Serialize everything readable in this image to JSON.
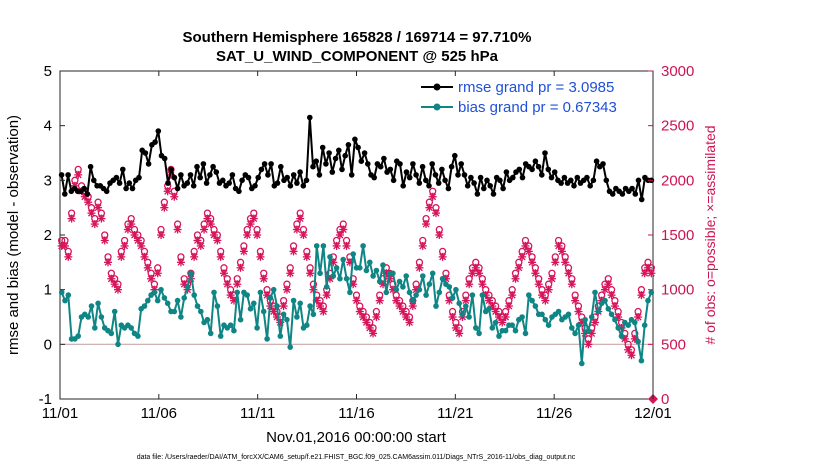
{
  "chart_data": {
    "type": "line",
    "title": "Southern Hemisphere 165828 / 169714 = 97.710%",
    "subtitle": "SAT_U_WIND_COMPONENT @ 525 hPa",
    "xlabel": "Nov.01,2016 00:00:00 start",
    "ylabel": "rmse and bias (model - observation)",
    "ylabel_right": "# of obs: o=possible; ×=assimilated",
    "footnote": "data file: /Users/raeder/DAI/ATM_forcXX/CAM6_setup/f.e21.FHIST_BGC.f09_025.CAM6assim.011/Diags_NTrS_2016-11/obs_diag_output.nc",
    "xlim": [
      0,
      30
    ],
    "ylim": [
      -1,
      5
    ],
    "ylim_right": [
      0,
      3000
    ],
    "x_tick_labels": [
      "11/01",
      "11/06",
      "11/11",
      "11/16",
      "11/21",
      "11/26",
      "12/01"
    ],
    "y_tick_labels": [
      "-1",
      "0",
      "1",
      "2",
      "3",
      "4",
      "5"
    ],
    "y_right_tick_labels": [
      "0",
      "500",
      "1000",
      "1500",
      "2000",
      "2500",
      "3000"
    ],
    "legend": [
      "rmse grand pr = 3.0985",
      "bias grand pr = 0.67343"
    ],
    "legend_position": "top-right",
    "colors": {
      "rmse": "#000000",
      "bias": "#0f8585",
      "obs": "#d6145a",
      "zero_line": "#c8a8a8"
    },
    "series": [
      {
        "name": "rmse",
        "values": [
          3.1,
          2.75,
          3.1,
          2.8,
          2.85,
          2.8,
          2.8,
          2.85,
          2.75,
          3.25,
          3.0,
          2.9,
          2.9,
          2.85,
          2.8,
          2.95,
          3.0,
          3.05,
          2.95,
          3.2,
          2.85,
          2.95,
          2.85,
          3.0,
          3.05,
          3.55,
          3.5,
          3.3,
          3.65,
          3.7,
          3.9,
          3.45,
          3.4,
          2.95,
          3.2,
          3.05,
          2.85,
          3.1,
          2.9,
          2.95,
          3.1,
          2.9,
          3.25,
          3.05,
          3.3,
          2.95,
          3.1,
          3.25,
          3.15,
          2.95,
          3.0,
          2.9,
          2.95,
          3.1,
          2.85,
          2.8,
          3.0,
          3.1,
          3.05,
          2.85,
          2.9,
          3.05,
          3.2,
          3.3,
          3.1,
          3.3,
          2.9,
          2.95,
          3.25,
          3.0,
          3.05,
          2.9,
          3.1,
          2.95,
          3.15,
          2.9,
          3.0,
          4.15,
          3.25,
          3.35,
          3.1,
          3.6,
          3.3,
          3.5,
          3.15,
          3.4,
          3.55,
          3.2,
          3.45,
          3.65,
          3.1,
          3.75,
          3.6,
          3.35,
          3.5,
          3.3,
          3.1,
          3.05,
          3.3,
          3.25,
          3.4,
          3.15,
          3.2,
          3.0,
          3.35,
          3.3,
          2.9,
          3.15,
          3.05,
          3.3,
          3.1,
          2.95,
          3.25,
          3.0,
          2.9,
          3.3,
          3.1,
          2.95,
          3.2,
          3.0,
          2.85,
          3.25,
          3.45,
          3.1,
          3.3,
          3.1,
          2.9,
          3.05,
          2.95,
          2.75,
          3.05,
          2.85,
          3.0,
          2.9,
          2.75,
          3.05,
          3.0,
          2.85,
          3.15,
          3.0,
          3.05,
          3.15,
          3.2,
          3.05,
          3.3,
          3.25,
          3.2,
          3.35,
          3.25,
          3.1,
          3.5,
          3.2,
          3.05,
          3.15,
          3.0,
          2.95,
          3.05,
          2.95,
          3.0,
          2.9,
          3.05,
          2.95,
          3.0,
          3.05,
          2.9,
          3.0,
          3.35,
          3.25,
          3.3,
          3.0,
          2.8,
          2.75,
          2.85,
          2.8,
          2.75,
          2.85,
          2.8,
          2.85,
          2.75,
          3.0,
          2.65,
          3.05,
          3.0,
          3.0
        ]
      },
      {
        "name": "bias",
        "values": [
          0.95,
          0.8,
          0.9,
          0.1,
          0.1,
          0.15,
          0.5,
          0.55,
          0.5,
          0.7,
          0.3,
          0.75,
          0.5,
          0.3,
          0.25,
          0.2,
          0.6,
          0.0,
          0.35,
          0.3,
          0.35,
          0.3,
          0.2,
          0.15,
          0.65,
          0.7,
          0.8,
          0.9,
          0.95,
          0.8,
          1.0,
          0.85,
          0.75,
          0.6,
          0.6,
          0.8,
          0.5,
          0.85,
          1.05,
          1.3,
          0.9,
          0.7,
          0.6,
          0.4,
          0.45,
          0.2,
          0.95,
          0.7,
          0.15,
          0.35,
          0.3,
          0.35,
          0.25,
          0.95,
          0.45,
          0.95,
          0.9,
          0.65,
          0.75,
          0.3,
          0.95,
          0.6,
          0.1,
          0.85,
          1.0,
          0.7,
          0.15,
          0.55,
          0.45,
          -0.05,
          0.8,
          0.5,
          0.75,
          0.3,
          0.35,
          0.7,
          0.55,
          1.8,
          1.3,
          1.8,
          1.05,
          1.6,
          1.25,
          1.4,
          1.2,
          1.55,
          1.2,
          0.95,
          1.65,
          1.4,
          1.4,
          1.8,
          1.35,
          1.5,
          1.25,
          1.35,
          1.15,
          1.45,
          0.95,
          1.3,
          1.3,
          1.0,
          1.15,
          1.05,
          1.25,
          0.95,
          0.8,
          0.9,
          1.0,
          1.25,
          0.9,
          1.1,
          1.3,
          0.7,
          0.95,
          1.2,
          1.1,
          1.05,
          0.85,
          1.0,
          0.75,
          0.55,
          0.7,
          0.5,
          0.9,
          0.3,
          0.2,
          0.9,
          0.6,
          0.65,
          0.3,
          0.4,
          0.15,
          0.25,
          0.25,
          0.35,
          0.35,
          0.25,
          0.45,
          0.5,
          0.2,
          0.9,
          0.8,
          0.7,
          0.55,
          0.55,
          0.45,
          0.35,
          0.5,
          0.55,
          0.6,
          0.45,
          0.5,
          0.55,
          0.3,
          0.2,
          0.35,
          -0.35,
          0.45,
          0.25,
          0.5,
          0.95,
          0.6,
          0.75,
          0.8,
          0.65,
          0.55,
          0.45,
          0.3,
          0.15,
          0.4,
          0.35,
          0.45,
          0.4,
          0.05,
          -0.3,
          0.35,
          0.8,
          0.95
        ]
      },
      {
        "name": "obs_possible",
        "values": [
          1450,
          1450,
          1350,
          1700,
          2000,
          2100,
          1950,
          1900,
          1850,
          1750,
          1650,
          1800,
          1700,
          1500,
          1300,
          1150,
          1100,
          1050,
          1350,
          1450,
          1600,
          1650,
          1550,
          1500,
          1450,
          1350,
          1250,
          1150,
          1050,
          1200,
          1550,
          1800,
          1950,
          2100,
          1900,
          1600,
          1300,
          1100,
          1050,
          1150,
          1350,
          1500,
          1450,
          1600,
          1700,
          1650,
          1550,
          1500,
          1350,
          1200,
          1100,
          1000,
          950,
          1100,
          1250,
          1400,
          1550,
          1650,
          1700,
          1550,
          1350,
          1150,
          1000,
          900,
          850,
          800,
          750,
          900,
          1050,
          1200,
          1400,
          1600,
          1700,
          1550,
          1350,
          1200,
          1050,
          950,
          900,
          850,
          1000,
          1150,
          1300,
          1450,
          1550,
          1600,
          1450,
          1300,
          1100,
          950,
          850,
          800,
          750,
          700,
          650,
          800,
          950,
          1100,
          1200,
          1150,
          1050,
          950,
          900,
          850,
          800,
          750,
          900,
          1050,
          1250,
          1450,
          1650,
          1800,
          1900,
          1750,
          1550,
          1350,
          1150,
          950,
          800,
          700,
          650,
          800,
          950,
          1100,
          1200,
          1250,
          1200,
          1100,
          1000,
          950,
          900,
          850,
          800,
          750,
          800,
          900,
          1000,
          1150,
          1250,
          1350,
          1450,
          1400,
          1300,
          1200,
          1100,
          1000,
          950,
          1050,
          1150,
          1300,
          1450,
          1400,
          1300,
          1200,
          1100,
          950,
          850,
          750,
          650,
          550,
          650,
          750,
          850,
          950,
          1050,
          1100,
          1000,
          900,
          800,
          700,
          600,
          500,
          450,
          600,
          800,
          1000,
          1200,
          1250,
          1200
        ]
      },
      {
        "name": "obs_assimilated",
        "values": [
          1400,
          1400,
          1300,
          1650,
          1950,
          2050,
          1900,
          1850,
          1800,
          1700,
          1600,
          1750,
          1650,
          1450,
          1250,
          1100,
          1050,
          1000,
          1300,
          1400,
          1550,
          1600,
          1500,
          1450,
          1400,
          1300,
          1200,
          1100,
          1000,
          1150,
          1500,
          1750,
          1900,
          2050,
          1850,
          1550,
          1250,
          1050,
          1000,
          1100,
          1300,
          1450,
          1400,
          1550,
          1650,
          1600,
          1500,
          1450,
          1300,
          1150,
          1050,
          950,
          900,
          1050,
          1200,
          1350,
          1500,
          1600,
          1650,
          1500,
          1300,
          1100,
          950,
          850,
          800,
          750,
          700,
          850,
          1000,
          1150,
          1350,
          1550,
          1650,
          1500,
          1300,
          1150,
          1000,
          900,
          850,
          800,
          950,
          1100,
          1250,
          1400,
          1500,
          1550,
          1400,
          1250,
          1050,
          900,
          800,
          750,
          700,
          650,
          600,
          750,
          900,
          1050,
          1150,
          1100,
          1000,
          900,
          850,
          800,
          750,
          700,
          850,
          1000,
          1200,
          1400,
          1600,
          1750,
          1850,
          1700,
          1500,
          1300,
          1100,
          900,
          750,
          650,
          600,
          750,
          900,
          1050,
          1150,
          1200,
          1150,
          1050,
          950,
          900,
          850,
          800,
          750,
          700,
          750,
          850,
          950,
          1100,
          1200,
          1300,
          1400,
          1350,
          1250,
          1150,
          1050,
          950,
          900,
          1000,
          1100,
          1250,
          1400,
          1350,
          1250,
          1150,
          1050,
          900,
          800,
          700,
          600,
          500,
          600,
          700,
          800,
          900,
          1000,
          1050,
          950,
          850,
          750,
          650,
          550,
          450,
          400,
          550,
          750,
          950,
          1150,
          1200,
          1150
        ]
      }
    ]
  }
}
